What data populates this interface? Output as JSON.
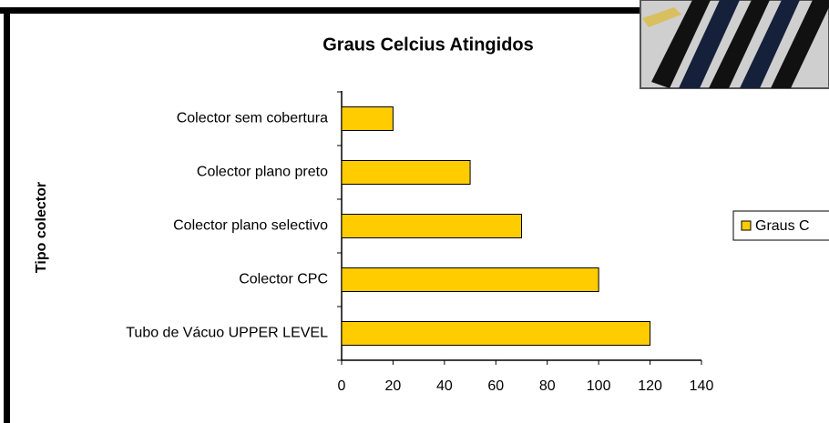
{
  "chart_data": {
    "type": "bar",
    "orientation": "horizontal",
    "title": "Graus Celcius Atingidos",
    "y_label": "Tipo colector",
    "categories": [
      "Colector sem cobertura",
      "Colector plano preto",
      "Colector plano selectivo",
      "Colector CPC",
      "Tubo de Vácuo UPPER LEVEL"
    ],
    "series": [
      {
        "name": "Graus C",
        "color": "#ffcc00",
        "values": [
          20,
          50,
          70,
          100,
          120
        ]
      }
    ],
    "xlim": [
      0,
      140
    ],
    "xticks": [
      0,
      20,
      40,
      60,
      80,
      100,
      120,
      140
    ],
    "grid": false,
    "legend": "right"
  }
}
